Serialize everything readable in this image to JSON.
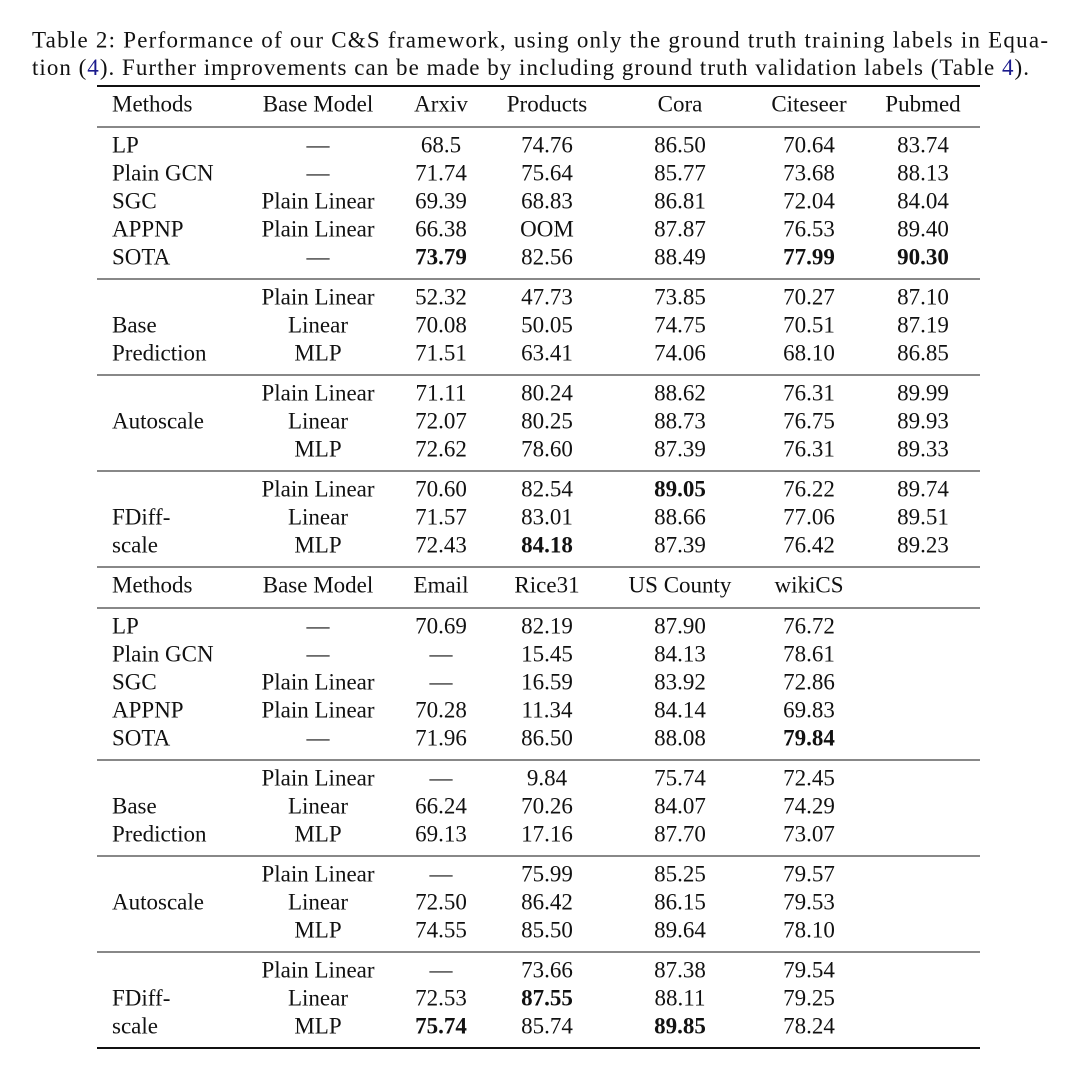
{
  "caption": {
    "line1": "Table 2: Performance of our C&S framework, using only the ground truth training labels in Equa-",
    "line2": [
      "tion (",
      "4",
      "). Further improvements can be made by including ground truth validation labels (Table ",
      "4",
      ")."
    ],
    "link_color": "#1a1a8c",
    "links": [
      1,
      3
    ]
  },
  "blocks": [
    {
      "header": [
        "Methods",
        "Base Model",
        "Arxiv",
        "Products",
        "Cora",
        "Citeseer",
        "Pubmed"
      ],
      "groups": [
        [
          {
            "method": "LP",
            "base_model": "—",
            "cells": [
              "68.5",
              "74.76",
              "86.50",
              "70.64",
              "83.74"
            ]
          },
          {
            "method": "Plain GCN",
            "base_model": "—",
            "cells": [
              "71.74",
              "75.64",
              "85.77",
              "73.68",
              "88.13"
            ]
          },
          {
            "method": "SGC",
            "base_model": "Plain Linear",
            "cells": [
              "69.39",
              "68.83",
              "86.81",
              "72.04",
              "84.04"
            ]
          },
          {
            "method": "APPNP",
            "base_model": "Plain Linear",
            "cells": [
              "66.38",
              "OOM",
              "87.87",
              "76.53",
              "89.40"
            ]
          },
          {
            "method": "SOTA",
            "base_model": "—",
            "cells": [
              {
                "text": "73.79",
                "bold": true
              },
              "82.56",
              "88.49",
              {
                "text": "77.99",
                "bold": true
              },
              {
                "text": "90.30",
                "bold": true
              }
            ]
          }
        ],
        [
          {
            "base_model": "Plain Linear",
            "cells": [
              "52.32",
              "47.73",
              "73.85",
              "70.27",
              "87.10"
            ]
          },
          {
            "method": "Base",
            "base_model": "Linear",
            "cells": [
              "70.08",
              "50.05",
              "74.75",
              "70.51",
              "87.19"
            ]
          },
          {
            "method": "Prediction",
            "base_model": "MLP",
            "cells": [
              "71.51",
              "63.41",
              "74.06",
              "68.10",
              "86.85"
            ]
          }
        ],
        [
          {
            "base_model": "Plain Linear",
            "cells": [
              "71.11",
              "80.24",
              "88.62",
              "76.31",
              "89.99"
            ]
          },
          {
            "method": "Autoscale",
            "base_model": "Linear",
            "cells": [
              "72.07",
              "80.25",
              "88.73",
              "76.75",
              "89.93"
            ]
          },
          {
            "base_model": "MLP",
            "cells": [
              "72.62",
              "78.60",
              "87.39",
              "76.31",
              "89.33"
            ]
          }
        ],
        [
          {
            "base_model": "Plain Linear",
            "cells": [
              "70.60",
              "82.54",
              {
                "text": "89.05",
                "bold": true
              },
              "76.22",
              "89.74"
            ]
          },
          {
            "method": "FDiff-",
            "base_model": "Linear",
            "cells": [
              "71.57",
              "83.01",
              "88.66",
              "77.06",
              "89.51"
            ]
          },
          {
            "method": "scale",
            "base_model": "MLP",
            "cells": [
              "72.43",
              {
                "text": "84.18",
                "bold": true
              },
              "87.39",
              "76.42",
              "89.23"
            ]
          }
        ]
      ]
    },
    {
      "header": [
        "Methods",
        "Base Model",
        "Email",
        "Rice31",
        "US County",
        "wikiCS"
      ],
      "groups": [
        [
          {
            "method": "LP",
            "base_model": "—",
            "cells": [
              "70.69",
              "82.19",
              "87.90",
              "76.72"
            ]
          },
          {
            "method": "Plain GCN",
            "base_model": "—",
            "cells": [
              "—",
              "15.45",
              "84.13",
              "78.61"
            ]
          },
          {
            "method": "SGC",
            "base_model": "Plain Linear",
            "cells": [
              "—",
              "16.59",
              "83.92",
              "72.86"
            ]
          },
          {
            "method": "APPNP",
            "base_model": "Plain Linear",
            "cells": [
              "70.28",
              "11.34",
              "84.14",
              "69.83"
            ]
          },
          {
            "method": "SOTA",
            "base_model": "—",
            "cells": [
              "71.96",
              "86.50",
              "88.08",
              {
                "text": "79.84",
                "bold": true
              }
            ]
          }
        ],
        [
          {
            "base_model": "Plain Linear",
            "cells": [
              "—",
              "9.84",
              "75.74",
              "72.45"
            ]
          },
          {
            "method": "Base",
            "base_model": "Linear",
            "cells": [
              "66.24",
              "70.26",
              "84.07",
              "74.29"
            ]
          },
          {
            "method": "Prediction",
            "base_model": "MLP",
            "cells": [
              "69.13",
              "17.16",
              "87.70",
              "73.07"
            ]
          }
        ],
        [
          {
            "base_model": "Plain Linear",
            "cells": [
              "—",
              "75.99",
              "85.25",
              "79.57"
            ]
          },
          {
            "method": "Autoscale",
            "base_model": "Linear",
            "cells": [
              "72.50",
              "86.42",
              "86.15",
              "79.53"
            ]
          },
          {
            "base_model": "MLP",
            "cells": [
              "74.55",
              "85.50",
              "89.64",
              "78.10"
            ]
          }
        ],
        [
          {
            "base_model": "Plain Linear",
            "cells": [
              "—",
              "73.66",
              "87.38",
              "79.54"
            ]
          },
          {
            "method": "FDiff-",
            "base_model": "Linear",
            "cells": [
              "72.53",
              {
                "text": "87.55",
                "bold": true
              },
              "88.11",
              "79.25"
            ]
          },
          {
            "method": "scale",
            "base_model": "MLP",
            "cells": [
              {
                "text": "75.74",
                "bold": true
              },
              "85.74",
              {
                "text": "89.85",
                "bold": true
              },
              "78.24"
            ]
          }
        ]
      ]
    }
  ]
}
